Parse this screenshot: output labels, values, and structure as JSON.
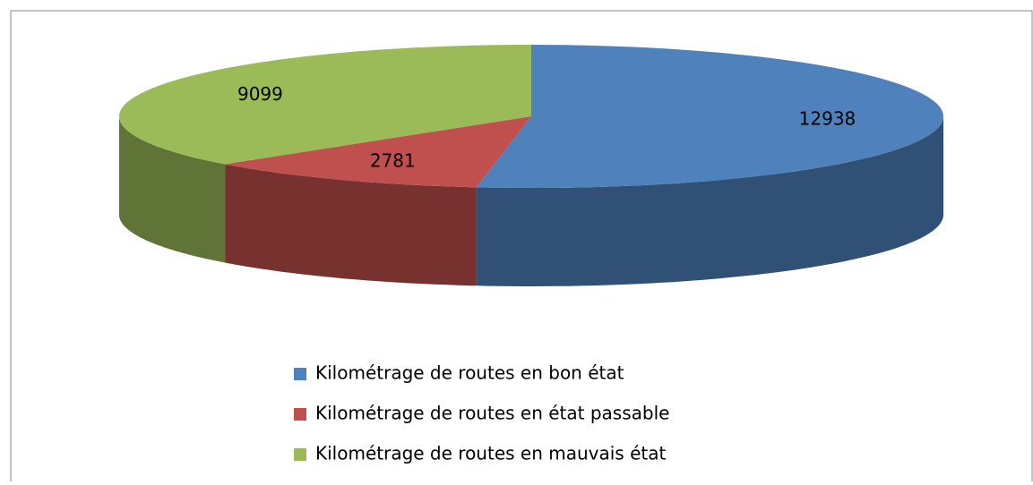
{
  "chart_data": {
    "type": "pie3d",
    "categories": [
      "Kilométrage de routes en bon état",
      "Kilométrage de routes en état passable",
      "Kilométrage de routes en mauvais état"
    ],
    "values": [
      12938,
      2781,
      9099
    ],
    "colors": [
      "#4f81bd",
      "#c0504d",
      "#9bbb59"
    ],
    "legend": "bottom"
  }
}
